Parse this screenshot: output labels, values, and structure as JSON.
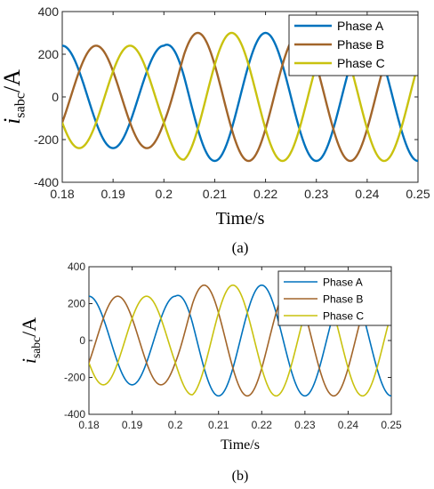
{
  "chart_data": [
    {
      "type": "line",
      "panel": "a",
      "caption": "(a)",
      "xlabel": "Time/s",
      "ylabel_main": "i",
      "ylabel_sub": "sabc",
      "ylabel_unit": "/A",
      "xlim": [
        0.18,
        0.25
      ],
      "ylim": [
        -400,
        400
      ],
      "xticks": [
        "0.18",
        "0.19",
        "0.2",
        "0.21",
        "0.22",
        "0.23",
        "0.24",
        "0.25"
      ],
      "yticks": [
        "-400",
        "-200",
        "0",
        "200",
        "400"
      ],
      "grid": false,
      "legend_position": "top-right",
      "frequency_hz": 50,
      "step_time": 0.2,
      "amplitude_before": 240,
      "amplitude_after": 300,
      "series": [
        {
          "name": "Phase A",
          "color": "#0072BD",
          "phase_deg": 90
        },
        {
          "name": "Phase B",
          "color": "#A2652A",
          "phase_deg": -30
        },
        {
          "name": "Phase C",
          "color": "#C9C20F",
          "phase_deg": 210
        }
      ]
    },
    {
      "type": "line",
      "panel": "b",
      "caption": "(b)",
      "xlabel": "Time/s",
      "ylabel_main": "i",
      "ylabel_sub": "sabc",
      "ylabel_unit": "/A",
      "xlim": [
        0.18,
        0.25
      ],
      "ylim": [
        -400,
        400
      ],
      "xticks": [
        "0.18",
        "0.19",
        "0.2",
        "0.21",
        "0.22",
        "0.23",
        "0.24",
        "0.25"
      ],
      "yticks": [
        "-400",
        "-200",
        "0",
        "200",
        "400"
      ],
      "grid": false,
      "legend_position": "top-right",
      "frequency_hz": 50,
      "step_time": 0.2,
      "amplitude_before": 240,
      "amplitude_after": 300,
      "series": [
        {
          "name": "Phase A",
          "color": "#0072BD",
          "phase_deg": 90
        },
        {
          "name": "Phase B",
          "color": "#A2652A",
          "phase_deg": -30
        },
        {
          "name": "Phase C",
          "color": "#C9C20F",
          "phase_deg": 210
        }
      ]
    }
  ]
}
